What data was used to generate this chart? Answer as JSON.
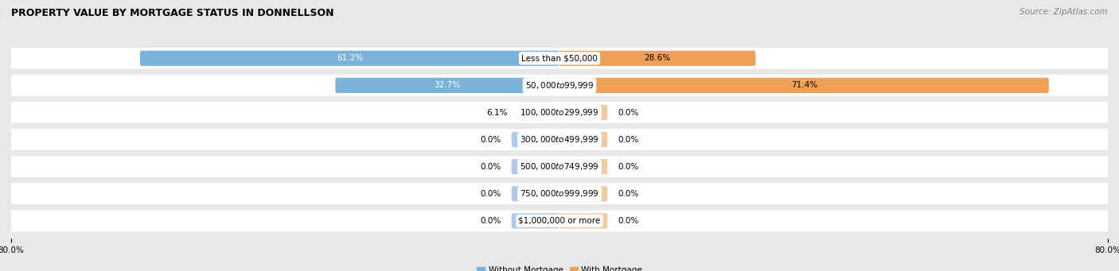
{
  "title": "PROPERTY VALUE BY MORTGAGE STATUS IN DONNELLSON",
  "source": "Source: ZipAtlas.com",
  "categories": [
    "Less than $50,000",
    "$50,000 to $99,999",
    "$100,000 to $299,999",
    "$300,000 to $499,999",
    "$500,000 to $749,999",
    "$750,000 to $999,999",
    "$1,000,000 or more"
  ],
  "without_mortgage": [
    61.2,
    32.7,
    6.1,
    0.0,
    0.0,
    0.0,
    0.0
  ],
  "with_mortgage": [
    28.6,
    71.4,
    0.0,
    0.0,
    0.0,
    0.0,
    0.0
  ],
  "color_without": "#7ab3d9",
  "color_with": "#f0a055",
  "color_without_pale": "#aacce8",
  "color_with_pale": "#f5c9a0",
  "axis_limit": 80.0,
  "legend_labels": [
    "Without Mortgage",
    "With Mortgage"
  ],
  "bg_color": "#e8e8e8",
  "row_bg": "#f0f0f0",
  "title_fontsize": 9,
  "source_fontsize": 7.5,
  "label_fontsize": 7.5,
  "category_fontsize": 7.5,
  "placeholder_bar_size": 7.0
}
